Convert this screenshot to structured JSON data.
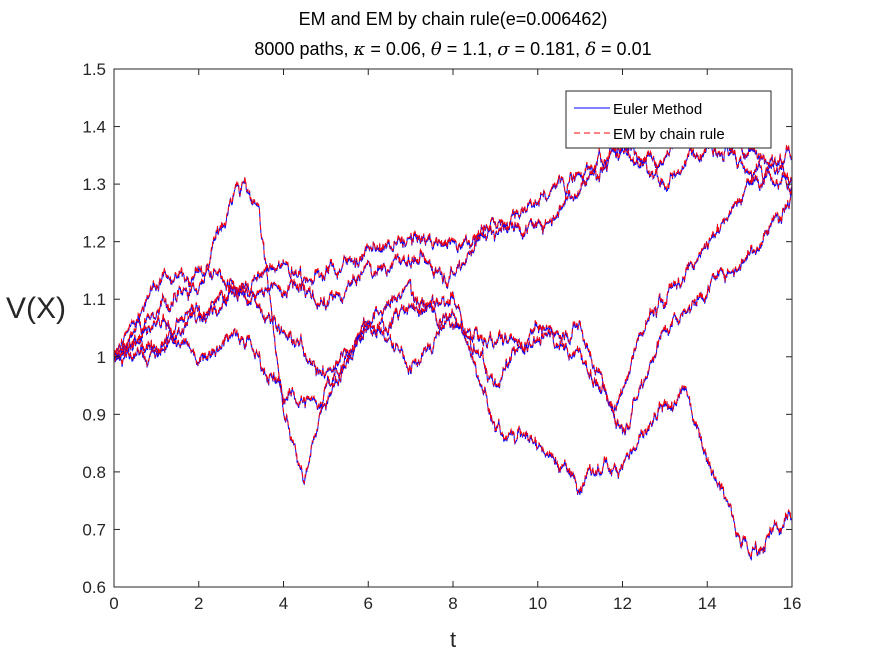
{
  "chart_data": {
    "type": "line",
    "title": "EM and EM by chain rule(e=0.006462)",
    "subtitle_prefix": "8000 paths,",
    "subtitle_params": [
      {
        "symbol": "κ",
        "text": " = 0.06, "
      },
      {
        "symbol": "θ",
        "text": " = 1.1, "
      },
      {
        "symbol": "σ",
        "text": " = 0.181,"
      },
      {
        "symbol": "δ",
        "text": " = 0.01"
      }
    ],
    "xlabel": "t",
    "ylabel": "V(X)",
    "xlim": [
      0,
      16
    ],
    "ylim": [
      0.6,
      1.5
    ],
    "xticks": [
      "0",
      "2",
      "4",
      "6",
      "8",
      "10",
      "12",
      "14",
      "16"
    ],
    "yticks": [
      "0.6",
      "0.7",
      "0.8",
      "0.9",
      "1",
      "1.1",
      "1.2",
      "1.3",
      "1.4",
      "1.5"
    ],
    "legend_position": "top-right",
    "legend": [
      {
        "name": "Euler Method",
        "color": "#0000ff",
        "style": "solid"
      },
      {
        "name": "EM by chain rule",
        "color": "#ff0000",
        "style": "dashed"
      }
    ],
    "paths": [
      {
        "x": [
          0,
          1,
          2,
          2.9,
          3.4,
          4,
          4.5,
          5,
          6,
          7,
          8,
          9,
          10,
          11,
          12,
          13,
          13.5,
          14,
          15,
          16
        ],
        "y": [
          1.0,
          1.08,
          1.12,
          1.3,
          1.27,
          0.9,
          0.77,
          0.95,
          1.05,
          1.08,
          1.1,
          0.88,
          0.85,
          0.78,
          0.82,
          0.9,
          0.94,
          0.83,
          0.66,
          0.72
        ]
      },
      {
        "x": [
          0,
          1,
          2,
          3,
          4,
          5,
          6,
          7,
          8,
          9,
          10,
          11,
          12,
          13,
          14,
          15,
          16
        ],
        "y": [
          1.0,
          1.13,
          1.15,
          1.12,
          1.16,
          1.08,
          1.15,
          1.17,
          1.15,
          1.24,
          1.22,
          1.3,
          1.36,
          1.35,
          1.42,
          1.32,
          1.3
        ]
      },
      {
        "x": [
          0,
          1,
          2,
          3,
          4,
          5,
          6,
          7,
          8,
          9,
          10,
          11,
          12,
          13,
          14,
          15,
          16
        ],
        "y": [
          1.0,
          1.0,
          1.08,
          1.1,
          1.12,
          1.15,
          1.18,
          1.2,
          1.2,
          1.22,
          1.27,
          1.32,
          1.36,
          1.3,
          1.38,
          1.35,
          1.3
        ]
      },
      {
        "x": [
          0,
          1,
          2,
          3,
          4,
          5,
          6,
          7,
          8,
          9,
          10,
          11,
          11.8,
          12.5,
          13,
          14,
          15,
          16
        ],
        "y": [
          1.0,
          1.03,
          1.08,
          1.12,
          1.05,
          0.97,
          1.06,
          1.12,
          1.05,
          1.02,
          1.03,
          1.05,
          0.9,
          1.05,
          1.1,
          1.2,
          1.3,
          1.35
        ]
      },
      {
        "x": [
          0,
          1,
          2,
          3,
          4,
          5,
          6,
          7,
          8,
          9,
          10,
          11,
          12,
          13,
          14,
          15,
          16
        ],
        "y": [
          1.0,
          1.05,
          1.0,
          1.05,
          0.93,
          0.92,
          1.07,
          0.98,
          1.07,
          0.95,
          1.05,
          1.0,
          0.88,
          1.05,
          1.12,
          1.18,
          1.28
        ]
      }
    ]
  }
}
